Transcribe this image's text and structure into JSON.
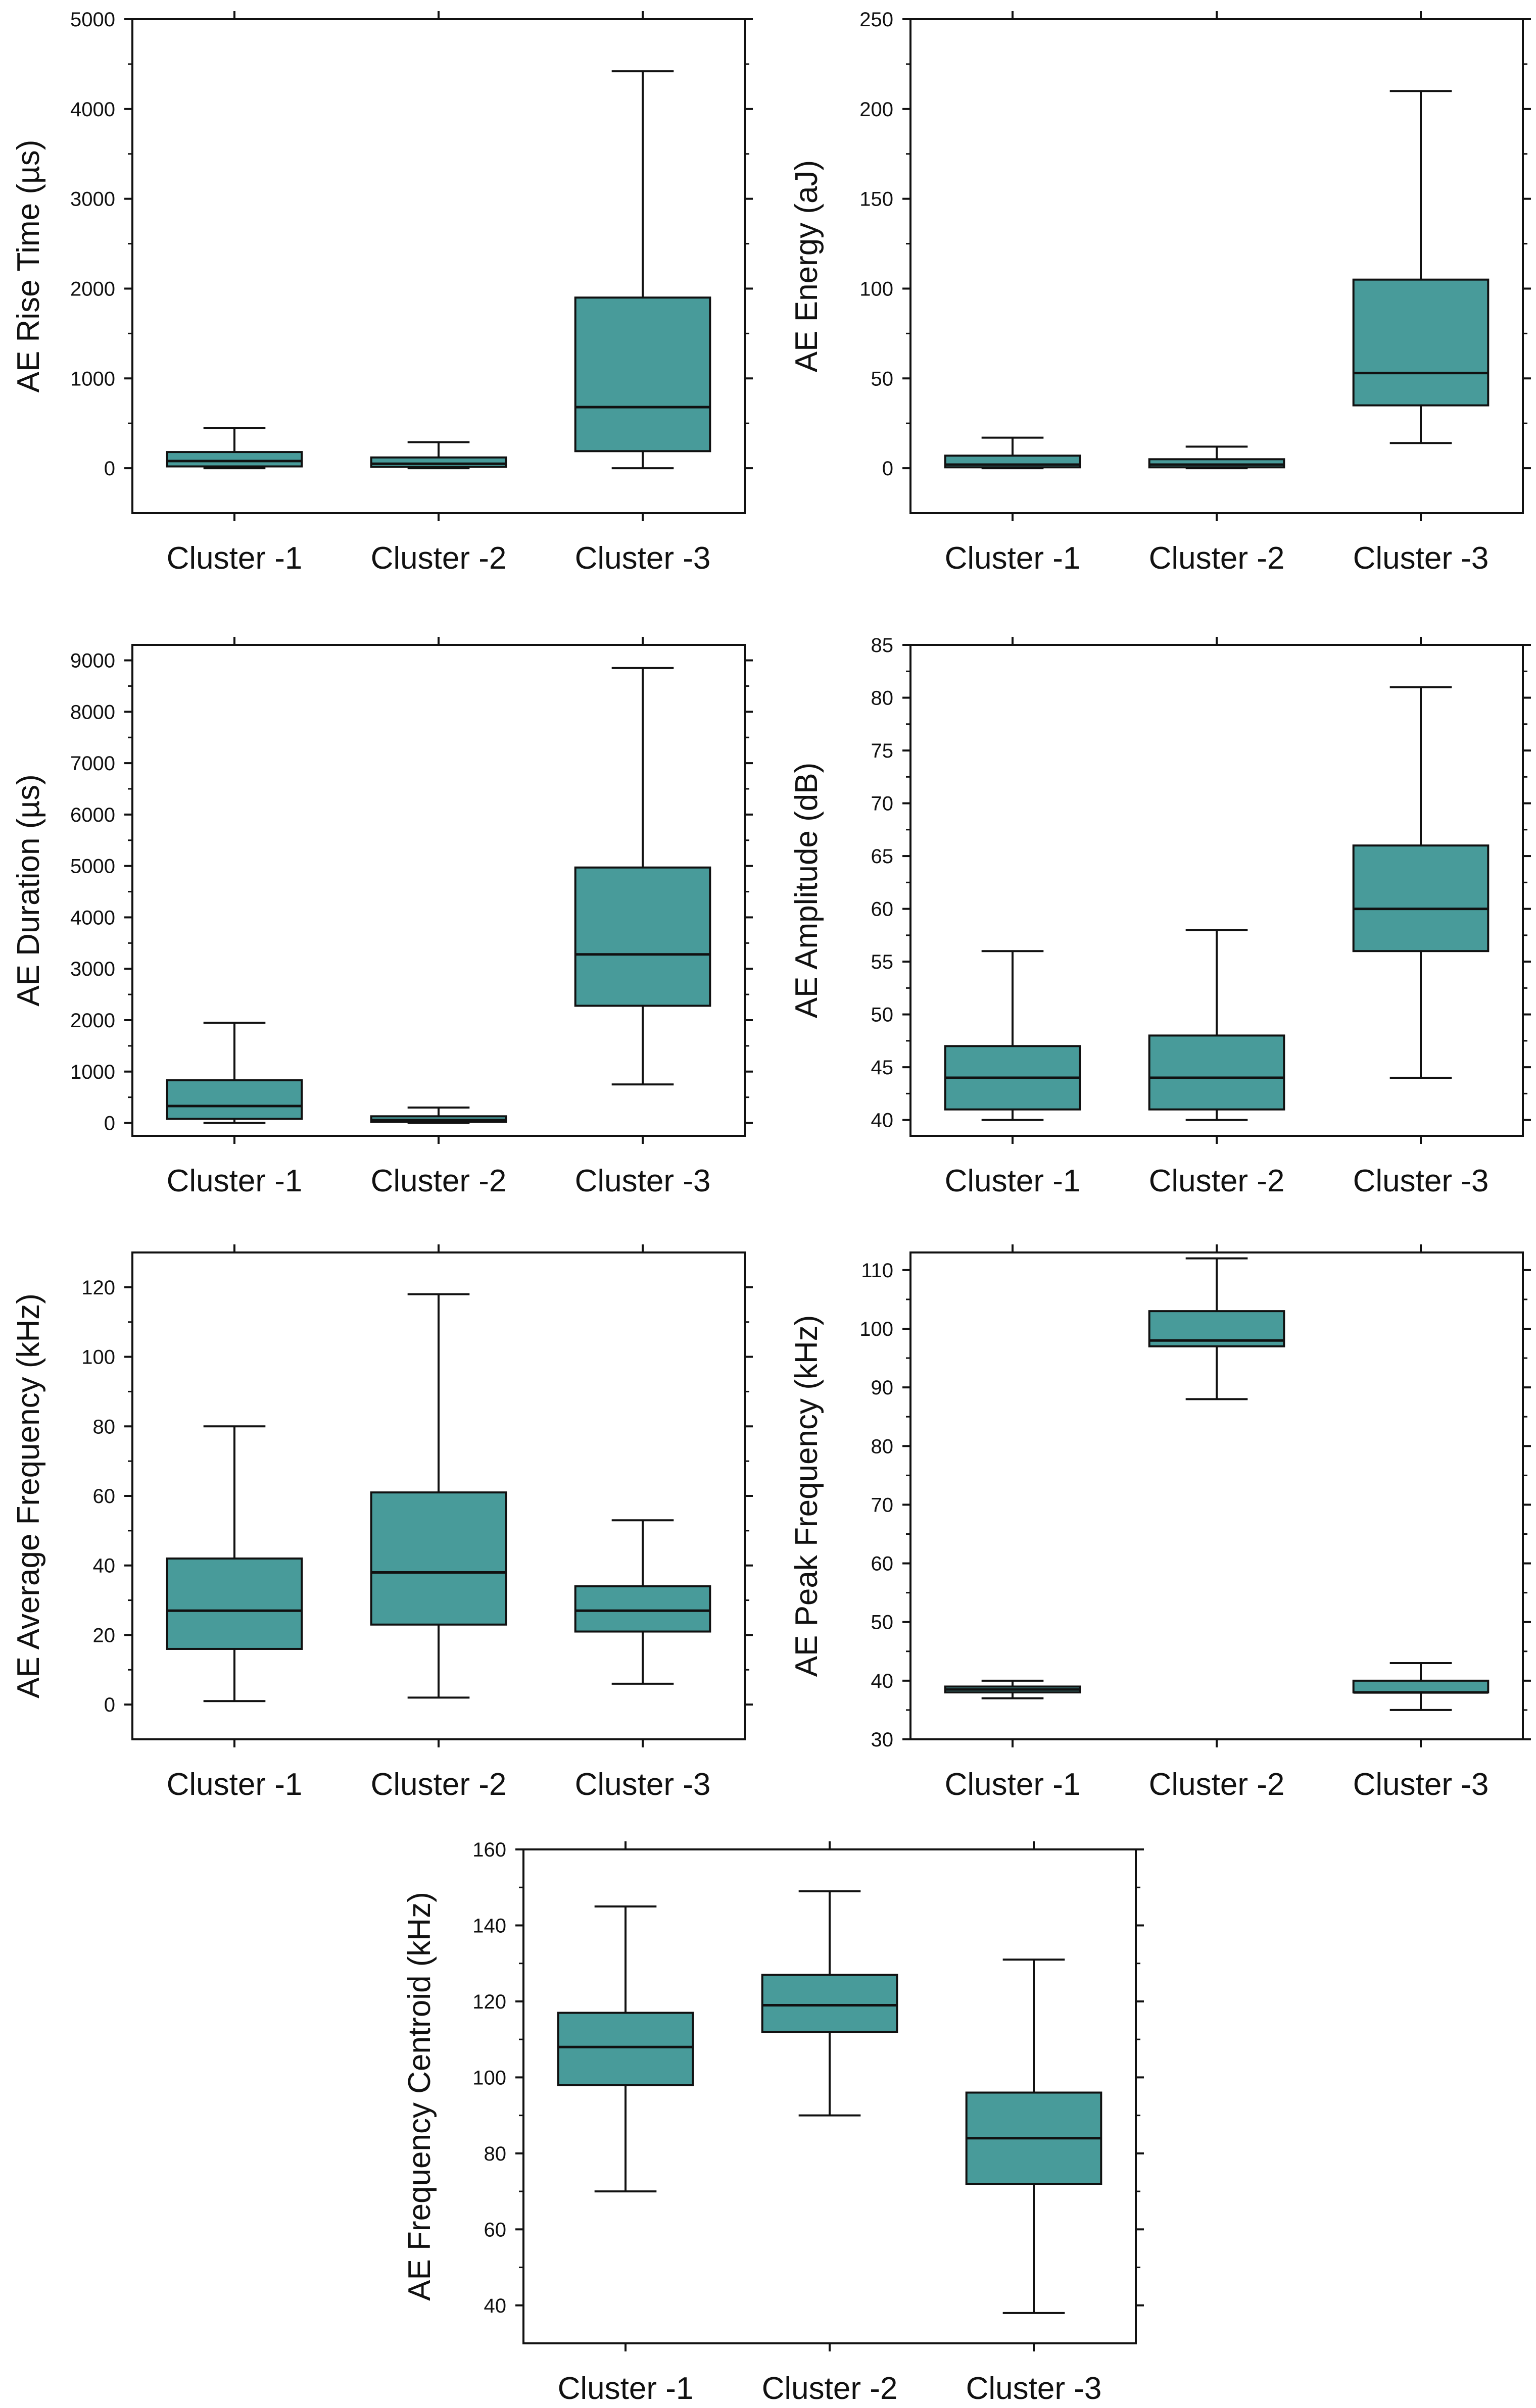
{
  "style": {
    "box_fill": "#489b9a",
    "line_color": "#111111"
  },
  "chart_data": [
    {
      "type": "boxplot",
      "ylabel": "AE Rise Time (µs)",
      "categories": [
        "Cluster -1",
        "Cluster -2",
        "Cluster -3"
      ],
      "ylim": [
        -500,
        5000
      ],
      "yticks": [
        0,
        1000,
        2000,
        3000,
        4000,
        5000
      ],
      "tick_labels": [
        "0",
        "1000",
        "2000",
        "3000",
        "4000",
        "5000"
      ],
      "boxes": [
        {
          "min": 0,
          "q1": 20,
          "median": 80,
          "q3": 180,
          "max": 450
        },
        {
          "min": 0,
          "q1": 15,
          "median": 50,
          "q3": 120,
          "max": 290
        },
        {
          "min": 0,
          "q1": 190,
          "median": 680,
          "q3": 1900,
          "max": 4420
        }
      ]
    },
    {
      "type": "boxplot",
      "ylabel": "AE Energy (aJ)",
      "categories": [
        "Cluster -1",
        "Cluster -2",
        "Cluster -3"
      ],
      "ylim": [
        -25,
        250
      ],
      "yticks": [
        0,
        50,
        100,
        150,
        200,
        250
      ],
      "tick_labels": [
        "0",
        "50",
        "100",
        "150",
        "200",
        "250"
      ],
      "boxes": [
        {
          "min": 0,
          "q1": 0.5,
          "median": 2,
          "q3": 7,
          "max": 17
        },
        {
          "min": 0,
          "q1": 0.5,
          "median": 2,
          "q3": 5,
          "max": 12
        },
        {
          "min": 14,
          "q1": 35,
          "median": 53,
          "q3": 105,
          "max": 210
        }
      ]
    },
    {
      "type": "boxplot",
      "ylabel": "AE Duration (µs)",
      "categories": [
        "Cluster -1",
        "Cluster -2",
        "Cluster -3"
      ],
      "ylim": [
        -250,
        9300
      ],
      "yticks": [
        0,
        1000,
        2000,
        3000,
        4000,
        5000,
        6000,
        7000,
        8000,
        9000
      ],
      "tick_labels": [
        "0",
        "1000",
        "2000",
        "3000",
        "4000",
        "5000",
        "6000",
        "7000",
        "8000",
        "9000"
      ],
      "boxes": [
        {
          "min": 0,
          "q1": 80,
          "median": 330,
          "q3": 830,
          "max": 1950
        },
        {
          "min": 0,
          "q1": 20,
          "median": 60,
          "q3": 130,
          "max": 300
        },
        {
          "min": 750,
          "q1": 2280,
          "median": 3280,
          "q3": 4970,
          "max": 8850
        }
      ]
    },
    {
      "type": "boxplot",
      "ylabel": "AE Amplitude (dB)",
      "categories": [
        "Cluster -1",
        "Cluster -2",
        "Cluster -3"
      ],
      "ylim": [
        38.5,
        85
      ],
      "yticks": [
        40,
        45,
        50,
        55,
        60,
        65,
        70,
        75,
        80,
        85
      ],
      "tick_labels": [
        "40",
        "45",
        "50",
        "55",
        "60",
        "65",
        "70",
        "75",
        "80",
        "85"
      ],
      "boxes": [
        {
          "min": 40,
          "q1": 41,
          "median": 44,
          "q3": 47,
          "max": 56
        },
        {
          "min": 40,
          "q1": 41,
          "median": 44,
          "q3": 48,
          "max": 58
        },
        {
          "min": 44,
          "q1": 56,
          "median": 60,
          "q3": 66,
          "max": 81
        }
      ]
    },
    {
      "type": "boxplot",
      "ylabel": "AE Average Frequency (kHz)",
      "categories": [
        "Cluster -1",
        "Cluster -2",
        "Cluster -3"
      ],
      "ylim": [
        -10,
        130
      ],
      "yticks": [
        0,
        20,
        40,
        60,
        80,
        100,
        120
      ],
      "tick_labels": [
        "0",
        "20",
        "40",
        "60",
        "80",
        "100",
        "120"
      ],
      "boxes": [
        {
          "min": 1,
          "q1": 16,
          "median": 27,
          "q3": 42,
          "max": 80
        },
        {
          "min": 2,
          "q1": 23,
          "median": 38,
          "q3": 61,
          "max": 118
        },
        {
          "min": 6,
          "q1": 21,
          "median": 27,
          "q3": 34,
          "max": 53
        }
      ]
    },
    {
      "type": "boxplot",
      "ylabel": "AE Peak Frequency (kHz)",
      "categories": [
        "Cluster -1",
        "Cluster -2",
        "Cluster -3"
      ],
      "ylim": [
        30,
        113
      ],
      "yticks": [
        30,
        40,
        50,
        60,
        70,
        80,
        90,
        100,
        110
      ],
      "tick_labels": [
        "30",
        "40",
        "50",
        "60",
        "70",
        "80",
        "90",
        "100",
        "110"
      ],
      "boxes": [
        {
          "min": 37,
          "q1": 38,
          "median": 38.5,
          "q3": 39,
          "max": 40
        },
        {
          "min": 88,
          "q1": 97,
          "median": 98,
          "q3": 103,
          "max": 112
        },
        {
          "min": 35,
          "q1": 38,
          "median": 38,
          "q3": 40,
          "max": 43
        }
      ]
    },
    {
      "type": "boxplot",
      "ylabel": "AE Frequency Centroid (kHz)",
      "categories": [
        "Cluster -1",
        "Cluster -2",
        "Cluster -3"
      ],
      "ylim": [
        30,
        160
      ],
      "yticks": [
        40,
        60,
        80,
        100,
        120,
        140,
        160
      ],
      "tick_labels": [
        "40",
        "60",
        "80",
        "100",
        "120",
        "140",
        "160"
      ],
      "boxes": [
        {
          "min": 70,
          "q1": 98,
          "median": 108,
          "q3": 117,
          "max": 145
        },
        {
          "min": 90,
          "q1": 112,
          "median": 119,
          "q3": 127,
          "max": 149
        },
        {
          "min": 38,
          "q1": 72,
          "median": 84,
          "q3": 96,
          "max": 131
        }
      ]
    }
  ]
}
